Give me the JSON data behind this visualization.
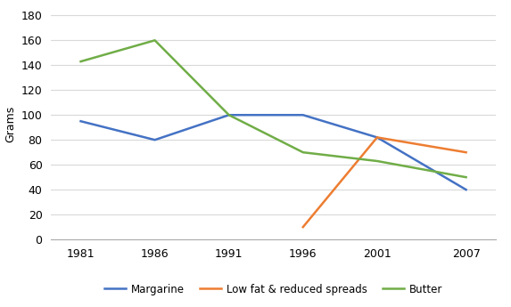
{
  "years": [
    1981,
    1986,
    1991,
    1996,
    2001,
    2007
  ],
  "margarine": [
    95,
    80,
    100,
    100,
    82,
    40
  ],
  "low_fat": [
    null,
    null,
    null,
    10,
    82,
    70
  ],
  "butter": [
    143,
    160,
    100,
    70,
    63,
    50
  ],
  "margarine_color": "#4472C4",
  "low_fat_color": "#ED7D31",
  "butter_color": "#70AD47",
  "ylabel": "Grams",
  "ylim": [
    0,
    185
  ],
  "yticks": [
    0,
    20,
    40,
    60,
    80,
    100,
    120,
    140,
    160,
    180
  ],
  "legend_labels": [
    "Margarine",
    "Low fat & reduced spreads",
    "Butter"
  ],
  "background_color": "#FFFFFF",
  "grid_color": "#D9D9D9"
}
